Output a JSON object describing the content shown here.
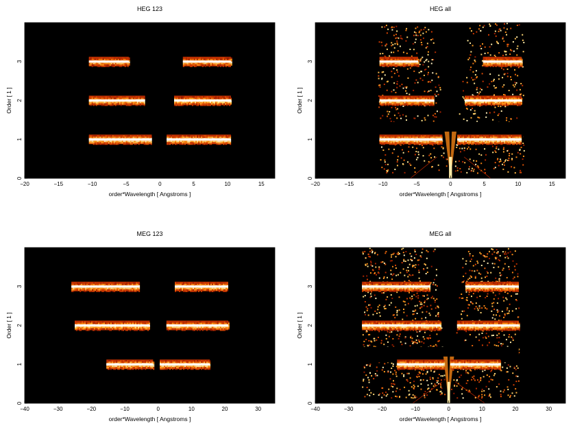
{
  "chart_data": [
    {
      "type": "heatmap",
      "title": "HEG 123",
      "xlabel": "order*Wavelength [ Angstroms ]",
      "ylabel": "Order [ 1 ]",
      "xlim": [
        -20,
        17
      ],
      "ylim": [
        0,
        4
      ],
      "xticks": [
        -20,
        -15,
        -10,
        -5,
        0,
        5,
        10,
        15
      ],
      "yticks": [
        0,
        1,
        2,
        3
      ],
      "colormap": [
        "#000000",
        "#7a0a00",
        "#d43c00",
        "#ff9a1a",
        "#ffe58a",
        "#ffffff"
      ],
      "bands": [
        {
          "order": 1,
          "segments": [
            [
              -10.5,
              -1.2
            ],
            [
              1.0,
              10.5
            ]
          ],
          "intensity": 0.95
        },
        {
          "order": 2,
          "segments": [
            [
              -10.5,
              -2.2
            ],
            [
              2.1,
              10.5
            ]
          ],
          "intensity": 0.85
        },
        {
          "order": 3,
          "segments": [
            [
              -10.5,
              -4.6
            ],
            [
              3.4,
              10.5
            ]
          ],
          "intensity": 0.8
        }
      ],
      "background": false
    },
    {
      "type": "heatmap",
      "title": "HEG all",
      "xlabel": "order*Wavelength [ Angstroms ]",
      "ylabel": "Order [ 1 ]",
      "xlim": [
        -20,
        17
      ],
      "ylim": [
        0,
        4
      ],
      "xticks": [
        -20,
        -15,
        -10,
        -5,
        0,
        5,
        10,
        15
      ],
      "yticks": [
        0,
        1,
        2,
        3
      ],
      "colormap": [
        "#000000",
        "#7a0a00",
        "#d43c00",
        "#ff9a1a",
        "#ffe58a",
        "#ffffff"
      ],
      "bands": [
        {
          "order": 1,
          "segments": [
            [
              -10.5,
              -1.2
            ],
            [
              1.0,
              10.5
            ]
          ],
          "intensity": 0.95
        },
        {
          "order": 2,
          "segments": [
            [
              -10.5,
              -2.4
            ],
            [
              2.1,
              10.5
            ]
          ],
          "intensity": 0.85
        },
        {
          "order": 3,
          "segments": [
            [
              -10.5,
              -4.8
            ],
            [
              4.8,
              10.5
            ]
          ],
          "intensity": 0.8
        }
      ],
      "background": true,
      "scatter_xrange": [
        -10.8,
        10.8
      ],
      "v_shape": true
    },
    {
      "type": "heatmap",
      "title": "MEG 123",
      "xlabel": "order*Wavelength [ Angstroms ]",
      "ylabel": "Order [ 1 ]",
      "xlim": [
        -40,
        35
      ],
      "ylim": [
        0,
        4
      ],
      "xticks": [
        -40,
        -30,
        -20,
        -10,
        0,
        10,
        20,
        30
      ],
      "yticks": [
        0,
        1,
        2,
        3
      ],
      "colormap": [
        "#000000",
        "#7a0a00",
        "#d43c00",
        "#ff9a1a",
        "#ffe58a",
        "#ffffff"
      ],
      "bands": [
        {
          "order": 1,
          "segments": [
            [
              -15.5,
              -1.5
            ],
            [
              0.5,
              15.5
            ]
          ],
          "intensity": 0.9
        },
        {
          "order": 2,
          "segments": [
            [
              -25,
              -2.5
            ],
            [
              2.5,
              21
            ]
          ],
          "intensity": 0.85
        },
        {
          "order": 3,
          "segments": [
            [
              -26,
              -5.5
            ],
            [
              5,
              21
            ]
          ],
          "intensity": 0.85
        }
      ],
      "background": false
    },
    {
      "type": "heatmap",
      "title": "MEG all",
      "xlabel": "order*Wavelength [ Angstroms ]",
      "ylabel": "Order [ 1 ]",
      "xlim": [
        -40,
        35
      ],
      "ylim": [
        0,
        4
      ],
      "xticks": [
        -40,
        -30,
        -20,
        -10,
        0,
        10,
        20,
        30
      ],
      "yticks": [
        0,
        1,
        2,
        3
      ],
      "colormap": [
        "#000000",
        "#7a0a00",
        "#d43c00",
        "#ff9a1a",
        "#ffe58a",
        "#ffffff"
      ],
      "bands": [
        {
          "order": 1,
          "segments": [
            [
              -15.5,
              -1.5
            ],
            [
              0.5,
              15.5
            ]
          ],
          "intensity": 0.9
        },
        {
          "order": 2,
          "segments": [
            [
              -26,
              -2.5
            ],
            [
              2.5,
              21
            ]
          ],
          "intensity": 0.85
        },
        {
          "order": 3,
          "segments": [
            [
              -26,
              -5.5
            ],
            [
              5,
              21
            ]
          ],
          "intensity": 0.85
        }
      ],
      "background": true,
      "scatter_xrange": [
        -26,
        21
      ],
      "v_shape": true
    }
  ]
}
